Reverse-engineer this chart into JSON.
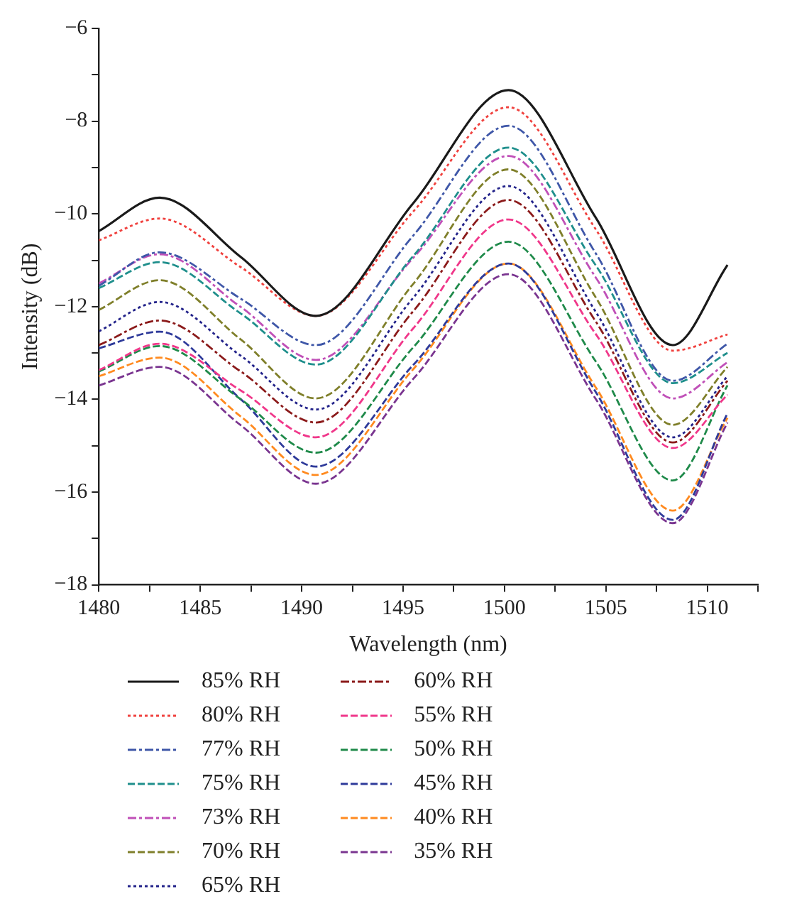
{
  "chart_data": {
    "type": "line",
    "xlabel": "Wavelength (nm)",
    "ylabel": "Intensity (dB)",
    "x": [
      1480,
      1483,
      1487,
      1490.7,
      1495.5,
      1500.2,
      1504.5,
      1508.3,
      1511
    ],
    "xlim": [
      1480,
      1512.5
    ],
    "xticks": [
      1480,
      {
        "value": 1482.5,
        "label": null
      },
      1485,
      {
        "value": 1487.5,
        "label": null
      },
      1490,
      {
        "value": 1492.5,
        "label": null
      },
      1495,
      {
        "value": 1497.5,
        "label": null
      },
      1500,
      {
        "value": 1502.5,
        "label": null
      },
      1505,
      {
        "value": 1507.5,
        "label": null
      },
      1510,
      {
        "value": 1512.5,
        "label": null
      }
    ],
    "ylim": [
      -18,
      -6
    ],
    "yticks": [
      -18,
      {
        "value": -17,
        "label": null
      },
      -16,
      {
        "value": -15,
        "label": null
      },
      -14,
      {
        "value": -13,
        "label": null
      },
      -12,
      {
        "value": -11,
        "label": null
      },
      -10,
      {
        "value": -9,
        "label": null
      },
      -8,
      {
        "value": -7,
        "label": null
      },
      -6
    ],
    "grid": false,
    "legend": "bottom",
    "marker": "none",
    "series": [
      {
        "name": "85% RH",
        "color": "#1a1a1a",
        "line_style": "solid",
        "values": [
          -10.37,
          -9.65,
          -10.93,
          -12.2,
          -9.77,
          -7.33,
          -10.08,
          -12.83,
          -11.1
        ]
      },
      {
        "name": "80% RH",
        "color": "#f0413e",
        "line_style": "dotted",
        "values": [
          -10.57,
          -10.1,
          -11.15,
          -12.2,
          -9.95,
          -7.7,
          -10.33,
          -12.95,
          -12.6
        ]
      },
      {
        "name": "77% RH",
        "color": "#3f57a8",
        "line_style": "dashdot",
        "values": [
          -11.55,
          -10.83,
          -11.83,
          -12.83,
          -10.47,
          -8.1,
          -10.85,
          -13.6,
          -12.8
        ]
      },
      {
        "name": "75% RH",
        "color": "#1f8f8c",
        "line_style": "dashed",
        "values": [
          -11.6,
          -11.04,
          -12.15,
          -13.25,
          -10.91,
          -8.57,
          -11.11,
          -13.65,
          -13.0
        ]
      },
      {
        "name": "73% RH",
        "color": "#c050b8",
        "line_style": "dashdot",
        "values": [
          -11.5,
          -10.87,
          -12.01,
          -13.15,
          -10.95,
          -8.75,
          -11.37,
          -13.98,
          -13.2
        ]
      },
      {
        "name": "70% RH",
        "color": "#7f7f2a",
        "line_style": "dashed",
        "values": [
          -12.07,
          -11.43,
          -12.71,
          -13.98,
          -11.51,
          -9.04,
          -11.8,
          -14.55,
          -13.3
        ]
      },
      {
        "name": "65% RH",
        "color": "#23238a",
        "line_style": "dotted",
        "values": [
          -12.53,
          -11.9,
          -13.06,
          -14.22,
          -11.81,
          -9.4,
          -12.11,
          -14.82,
          -13.5
        ]
      },
      {
        "name": "60% RH",
        "color": "#8b1a1a",
        "line_style": "dashdot",
        "values": [
          -12.83,
          -12.3,
          -13.4,
          -14.5,
          -12.1,
          -9.7,
          -12.32,
          -14.93,
          -13.6
        ]
      },
      {
        "name": "55% RH",
        "color": "#f0378a",
        "line_style": "dashed",
        "values": [
          -13.37,
          -12.8,
          -13.81,
          -14.82,
          -12.47,
          -10.12,
          -12.59,
          -15.05,
          -13.9
        ]
      },
      {
        "name": "50% RH",
        "color": "#1f8a4a",
        "line_style": "dashed",
        "values": [
          -13.4,
          -12.85,
          -14.0,
          -15.15,
          -12.88,
          -10.6,
          -13.18,
          -15.75,
          -13.7
        ]
      },
      {
        "name": "45% RH",
        "color": "#2e3a9a",
        "line_style": "dashed",
        "values": [
          -12.9,
          -12.54,
          -14.0,
          -15.45,
          -13.26,
          -11.07,
          -13.84,
          -16.6,
          -14.3
        ]
      },
      {
        "name": "40% RH",
        "color": "#ff8a1f",
        "line_style": "dashed",
        "values": [
          -13.5,
          -13.1,
          -14.37,
          -15.63,
          -13.35,
          -11.07,
          -13.74,
          -16.4,
          -14.4
        ]
      },
      {
        "name": "35% RH",
        "color": "#7a3590",
        "line_style": "dashed",
        "values": [
          -13.7,
          -13.3,
          -14.56,
          -15.82,
          -13.56,
          -11.3,
          -13.99,
          -16.67,
          -14.5
        ]
      }
    ]
  }
}
